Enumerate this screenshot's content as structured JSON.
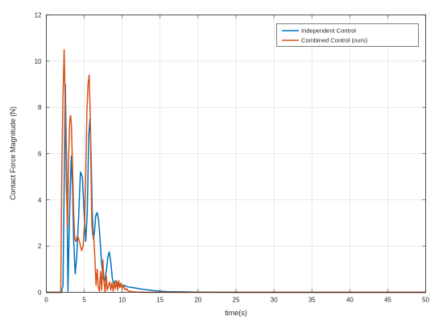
{
  "chart_data": {
    "type": "line",
    "title": "",
    "xlabel": "time(s)",
    "ylabel": "Contact Force Magnitude (N)",
    "xlim": [
      0,
      50
    ],
    "ylim": [
      0,
      12
    ],
    "xticks": [
      0,
      5,
      10,
      15,
      20,
      25,
      30,
      35,
      40,
      45,
      50
    ],
    "yticks": [
      0,
      2,
      4,
      6,
      8,
      10,
      12
    ],
    "grid": true,
    "legend_position": "top-right",
    "series": [
      {
        "name": "Independent Control",
        "color": "#0072BD",
        "x": [
          0,
          2.0,
          2.2,
          2.35,
          2.5,
          2.7,
          2.85,
          3.0,
          3.15,
          3.3,
          3.45,
          3.6,
          3.8,
          4.0,
          4.25,
          4.5,
          4.75,
          5.0,
          5.2,
          5.4,
          5.6,
          5.75,
          5.9,
          6.05,
          6.2,
          6.35,
          6.5,
          6.7,
          6.9,
          7.1,
          7.3,
          7.5,
          7.7,
          7.9,
          8.1,
          8.3,
          8.5,
          8.7,
          8.9,
          9.1,
          9.3,
          9.5,
          9.7,
          10.0,
          10.3,
          10.6,
          11.0,
          11.5,
          12.0,
          12.5,
          13.0,
          13.5,
          14.0,
          14.5,
          15.0,
          16.0,
          18.0,
          20.0,
          25.0,
          50.0
        ],
        "values": [
          0,
          0,
          0.3,
          4.5,
          9.0,
          5.0,
          0.05,
          2.5,
          4.4,
          5.9,
          4.6,
          2.3,
          0.8,
          1.5,
          3.2,
          5.2,
          5.0,
          3.3,
          2.2,
          3.5,
          6.8,
          7.5,
          6.0,
          3.5,
          2.3,
          2.6,
          3.3,
          3.45,
          3.1,
          2.2,
          1.2,
          0.6,
          0.5,
          0.9,
          1.5,
          1.75,
          1.3,
          0.6,
          0.35,
          0.5,
          0.45,
          0.3,
          0.25,
          0.3,
          0.3,
          0.25,
          0.22,
          0.2,
          0.17,
          0.14,
          0.12,
          0.1,
          0.08,
          0.06,
          0.05,
          0.03,
          0.02,
          0.01,
          0.0,
          0.0
        ]
      },
      {
        "name": "Combined Control (ours)",
        "color": "#D95319",
        "x": [
          0,
          1.9,
          2.05,
          2.2,
          2.35,
          2.5,
          2.65,
          2.8,
          2.95,
          3.1,
          3.2,
          3.3,
          3.45,
          3.6,
          3.75,
          3.9,
          4.05,
          4.25,
          4.45,
          4.65,
          4.85,
          5.05,
          5.2,
          5.35,
          5.5,
          5.65,
          5.8,
          5.9,
          6.0,
          6.1,
          6.25,
          6.4,
          6.55,
          6.7,
          6.85,
          7.0,
          7.15,
          7.3,
          7.45,
          7.6,
          7.75,
          7.9,
          8.05,
          8.2,
          8.35,
          8.5,
          8.65,
          8.8,
          8.95,
          9.1,
          9.25,
          9.4,
          9.55,
          9.7,
          9.85,
          10.0,
          10.2,
          10.4,
          10.6,
          10.8,
          11.0,
          11.5,
          12.0,
          13.0,
          50.0
        ],
        "values": [
          0,
          0,
          5.5,
          8.5,
          10.5,
          8.0,
          4.5,
          2.8,
          6.0,
          7.5,
          7.65,
          7.3,
          5.5,
          3.5,
          2.3,
          2.2,
          2.4,
          2.35,
          2.1,
          1.8,
          2.0,
          3.0,
          5.2,
          7.8,
          9.0,
          9.4,
          7.5,
          5.0,
          3.0,
          2.5,
          2.4,
          1.5,
          0.3,
          1.0,
          0.2,
          0.05,
          0.9,
          0.1,
          1.4,
          0.5,
          0.0,
          0.7,
          0.1,
          0.3,
          0.45,
          0.1,
          0.4,
          0.05,
          0.45,
          0.15,
          0.5,
          0.1,
          0.5,
          0.2,
          0.4,
          0.15,
          0.3,
          0.1,
          0.15,
          0.05,
          0.05,
          0.02,
          0.01,
          0.0,
          0.0
        ]
      }
    ]
  }
}
